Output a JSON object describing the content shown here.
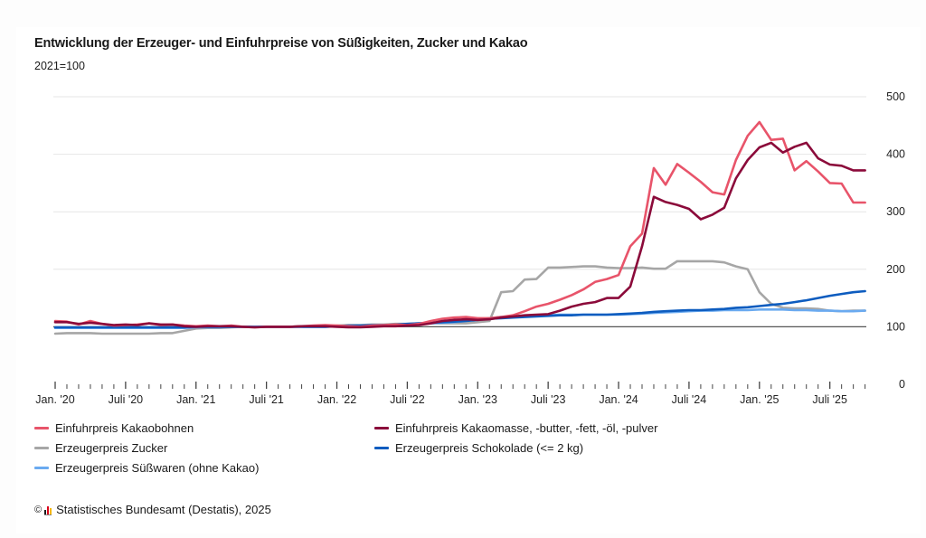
{
  "header": {
    "title": "Entwicklung der Erzeuger- und Einfuhrpreise von Süßigkeiten, Zucker und Kakao",
    "subtitle": "2021=100"
  },
  "source": {
    "copyright_symbol": "©",
    "text": "Statistisches Bundesamt (Destatis), 2025"
  },
  "chart_data": {
    "type": "line",
    "title": "Entwicklung der Erzeuger- und Einfuhrpreise von Süßigkeiten, Zucker und Kakao",
    "subtitle": "2021=100",
    "xlabel": "",
    "ylabel": "",
    "ylim": [
      0,
      500
    ],
    "y_ticks": [
      "0",
      "100",
      "200",
      "300",
      "400",
      "500"
    ],
    "y_axis_side": "right",
    "reference_line": 100,
    "grid": true,
    "legend_position": "bottom",
    "x_start": "2020-01",
    "x_frequency": "monthly",
    "x_tick_labels": [
      {
        "month_index": 0,
        "label": "Jan. '20"
      },
      {
        "month_index": 6,
        "label": "Juli '20"
      },
      {
        "month_index": 12,
        "label": "Jan. '21"
      },
      {
        "month_index": 18,
        "label": "Juli '21"
      },
      {
        "month_index": 24,
        "label": "Jan. '22"
      },
      {
        "month_index": 30,
        "label": "Juli '22"
      },
      {
        "month_index": 36,
        "label": "Jan. '23"
      },
      {
        "month_index": 42,
        "label": "Juli '23"
      },
      {
        "month_index": 48,
        "label": "Jan. '24"
      },
      {
        "month_index": 54,
        "label": "Juli '24"
      },
      {
        "month_index": 60,
        "label": "Jan. '25"
      },
      {
        "month_index": 66,
        "label": "Juli '25"
      }
    ],
    "n_months": 70,
    "series": [
      {
        "name": "Erzeugerpreis Zucker",
        "color": "#a6a6a6",
        "values": [
          88,
          89,
          89,
          89,
          88,
          88,
          88,
          88,
          88,
          89,
          89,
          93,
          97,
          98,
          98,
          99,
          100,
          100,
          100,
          100,
          100,
          101,
          101,
          101,
          102,
          103,
          103,
          104,
          104,
          105,
          105,
          106,
          106,
          106,
          106,
          106,
          108,
          110,
          160,
          162,
          182,
          183,
          203,
          203,
          204,
          205,
          205,
          203,
          202,
          202,
          203,
          201,
          201,
          214,
          214,
          214,
          214,
          212,
          205,
          200,
          160,
          140,
          133,
          132,
          132,
          131,
          128,
          127,
          128,
          128
        ]
      },
      {
        "name": "Erzeugerpreis Süßwaren (ohne Kakao)",
        "color": "#6aaaf0",
        "values": [
          98,
          98,
          98,
          98,
          98,
          98,
          98,
          98,
          98,
          98,
          98,
          98,
          99,
          99,
          99,
          100,
          100,
          100,
          100,
          100,
          100,
          100,
          100,
          100,
          101,
          101,
          101,
          102,
          103,
          103,
          104,
          105,
          106,
          107,
          108,
          110,
          113,
          115,
          117,
          118,
          119,
          120,
          120,
          121,
          121,
          121,
          121,
          121,
          121,
          122,
          123,
          124,
          125,
          126,
          127,
          128,
          128,
          129,
          129,
          129,
          130,
          130,
          130,
          129,
          129,
          128,
          128,
          127,
          127,
          128
        ]
      },
      {
        "name": "Erzeugerpreis Schokolade (<= 2 kg)",
        "color": "#0d5cbf",
        "values": [
          99,
          99,
          99,
          99,
          99,
          99,
          99,
          99,
          99,
          99,
          99,
          99,
          100,
          100,
          100,
          100,
          100,
          100,
          100,
          100,
          100,
          100,
          100,
          100,
          101,
          102,
          102,
          103,
          103,
          104,
          105,
          106,
          107,
          108,
          109,
          110,
          112,
          114,
          115,
          116,
          117,
          118,
          119,
          120,
          120,
          121,
          121,
          121,
          122,
          123,
          124,
          126,
          127,
          128,
          129,
          129,
          130,
          131,
          133,
          134,
          136,
          138,
          140,
          143,
          146,
          150,
          154,
          157,
          160,
          162
        ]
      },
      {
        "name": "Einfuhrpreis Kakaobohnen",
        "color": "#e8546a",
        "values": [
          110,
          109,
          104,
          110,
          105,
          102,
          103,
          104,
          106,
          103,
          104,
          102,
          101,
          102,
          101,
          102,
          100,
          99,
          100,
          100,
          100,
          101,
          102,
          103,
          102,
          101,
          100,
          102,
          103,
          104,
          103,
          105,
          110,
          114,
          116,
          117,
          115,
          115,
          117,
          120,
          127,
          135,
          140,
          147,
          155,
          165,
          178,
          183,
          190,
          240,
          262,
          376,
          347,
          383,
          368,
          352,
          334,
          330,
          390,
          432,
          456,
          425,
          427,
          372,
          388,
          370,
          350,
          349,
          316,
          316
        ]
      },
      {
        "name": "Einfuhrpreis Kakaomasse, -butter, -fett, -öl, -pulver",
        "color": "#8b0a3a",
        "values": [
          108,
          108,
          105,
          107,
          105,
          103,
          104,
          103,
          106,
          104,
          104,
          101,
          100,
          101,
          101,
          101,
          100,
          99,
          100,
          100,
          100,
          101,
          101,
          101,
          100,
          99,
          99,
          100,
          101,
          101,
          102,
          103,
          106,
          110,
          112,
          113,
          112,
          113,
          116,
          118,
          120,
          121,
          122,
          128,
          135,
          140,
          143,
          150,
          150,
          170,
          240,
          326,
          317,
          312,
          305,
          287,
          295,
          307,
          358,
          390,
          412,
          420,
          403,
          413,
          420,
          393,
          382,
          380,
          372,
          372
        ]
      }
    ]
  },
  "legend": [
    {
      "label": "Einfuhrpreis Kakaobohnen",
      "color": "#e8546a"
    },
    {
      "label": "Einfuhrpreis Kakaomasse, -butter, -fett, -öl, -pulver",
      "color": "#8b0a3a"
    },
    {
      "label": "Erzeugerpreis Zucker",
      "color": "#a6a6a6"
    },
    {
      "label": "Erzeugerpreis Schokolade (<= 2 kg)",
      "color": "#0d5cbf"
    },
    {
      "label": "Erzeugerpreis Süßwaren (ohne Kakao)",
      "color": "#6aaaf0"
    }
  ]
}
